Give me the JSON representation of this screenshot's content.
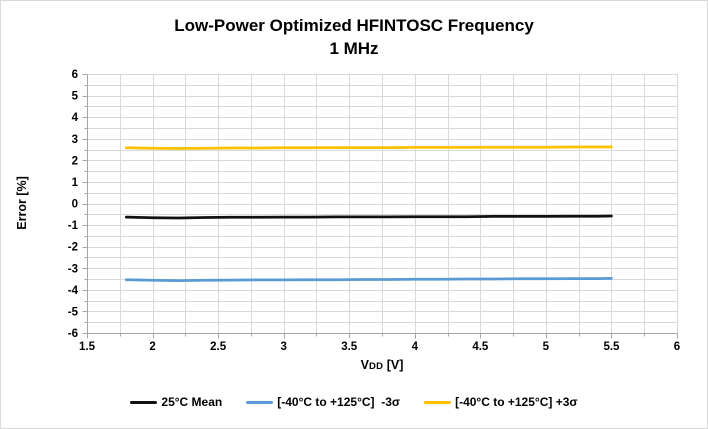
{
  "chart_data": {
    "type": "line",
    "title": "Low-Power Optimized HFINTOSC Frequency",
    "subtitle": "1 MHz",
    "xlabel": "VDD [V]",
    "xlabel_parts": {
      "base": "V",
      "sub": "DD",
      "unit": " [V]"
    },
    "ylabel": "Error [%]",
    "xlim": [
      1.5,
      6
    ],
    "ylim": [
      -6,
      6
    ],
    "x_major_step": 0.5,
    "x_minor_step": 0.25,
    "y_major_step": 1,
    "y_minor_step": 0.5,
    "x_tick_labels": [
      "1.5",
      "2",
      "2.5",
      "3",
      "3.5",
      "4",
      "4.5",
      "5",
      "5.5",
      "6"
    ],
    "y_tick_labels": [
      "6",
      "5",
      "4",
      "3",
      "2",
      "1",
      "0",
      "-1",
      "-2",
      "-3",
      "-4",
      "-5",
      "-6"
    ],
    "grid": true,
    "legend_position": "bottom",
    "x": [
      1.8,
      2.0,
      2.2,
      2.4,
      2.6,
      2.8,
      3.0,
      3.2,
      3.4,
      3.6,
      3.8,
      4.0,
      4.2,
      4.4,
      4.6,
      4.8,
      5.0,
      5.2,
      5.4,
      5.5
    ],
    "series": [
      {
        "name": "25°C Mean",
        "color": "#111111",
        "values": [
          -0.63,
          -0.66,
          -0.67,
          -0.65,
          -0.64,
          -0.64,
          -0.63,
          -0.63,
          -0.62,
          -0.62,
          -0.62,
          -0.61,
          -0.61,
          -0.61,
          -0.6,
          -0.6,
          -0.6,
          -0.59,
          -0.59,
          -0.58
        ]
      },
      {
        "name": "[-40°C to +125°C]  -3σ",
        "color": "#5B9BD5",
        "values": [
          -3.53,
          -3.56,
          -3.57,
          -3.56,
          -3.55,
          -3.54,
          -3.54,
          -3.53,
          -3.53,
          -3.52,
          -3.52,
          -3.51,
          -3.51,
          -3.5,
          -3.5,
          -3.49,
          -3.49,
          -3.48,
          -3.48,
          -3.47
        ]
      },
      {
        "name": "[-40°C to +125°C] +3σ",
        "color": "#FFC000",
        "values": [
          2.58,
          2.56,
          2.55,
          2.56,
          2.57,
          2.57,
          2.58,
          2.58,
          2.59,
          2.59,
          2.59,
          2.6,
          2.6,
          2.6,
          2.61,
          2.61,
          2.61,
          2.62,
          2.62,
          2.62
        ]
      }
    ],
    "style": {
      "gridline_color": "#D9D9D9",
      "axis_color": "#A6A6A6",
      "line_width": 2.75
    }
  }
}
